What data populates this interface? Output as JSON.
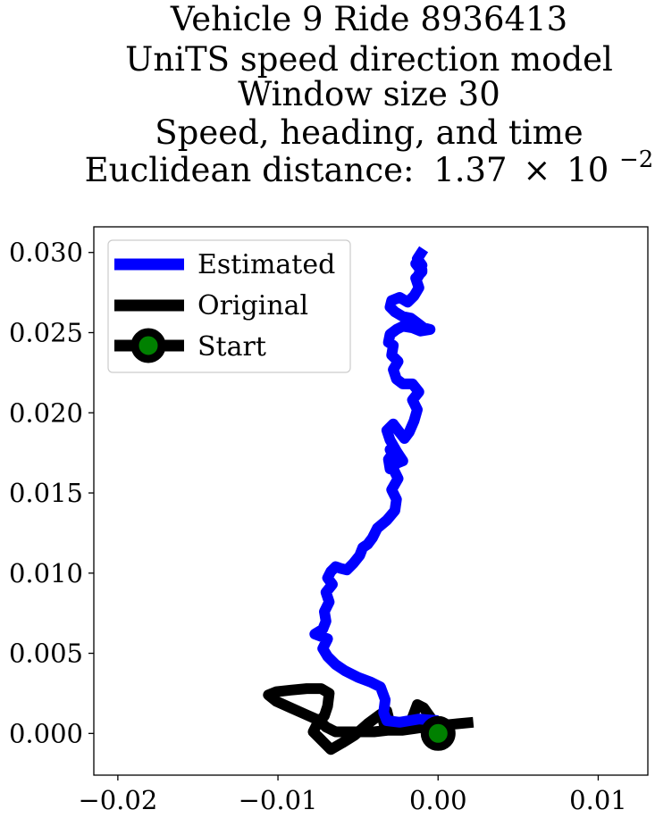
{
  "chart_data": {
    "type": "line",
    "title_lines": [
      "Vehicle 9 Ride 8936413",
      "UniTS speed direction model",
      "Window size 30",
      "Speed, heading, and time"
    ],
    "metric_label": "Euclidean distance:",
    "metric_mantissa": "1.37",
    "metric_times": "×",
    "metric_base": "10",
    "metric_exponent": "−2",
    "xlim": [
      -0.0215,
      0.0131
    ],
    "ylim": [
      -0.0026,
      0.0316
    ],
    "xticks": [
      -0.02,
      -0.01,
      0.0,
      0.01
    ],
    "xtick_labels": [
      "−0.02",
      "−0.01",
      "0.00",
      "0.01"
    ],
    "yticks": [
      0.0,
      0.005,
      0.01,
      0.015,
      0.02,
      0.025,
      0.03
    ],
    "ytick_labels": [
      "0.000",
      "0.005",
      "0.010",
      "0.015",
      "0.020",
      "0.025",
      "0.030"
    ],
    "grid": false,
    "legend": {
      "position": "upper left",
      "entries": [
        "Estimated",
        "Original",
        "Start"
      ]
    },
    "colors": {
      "estimated": "#0000ff",
      "original": "#000000",
      "start_edge": "#000000",
      "start_face": "#008000"
    },
    "series": [
      {
        "name": "Estimated",
        "x": [
          0.0,
          -0.0012,
          -0.0024,
          -0.0032,
          -0.0034,
          -0.0033,
          -0.0036,
          -0.0042,
          -0.005,
          -0.0058,
          -0.0064,
          -0.0069,
          -0.0072,
          -0.0069,
          -0.0077,
          -0.0072,
          -0.007,
          -0.0071,
          -0.0068,
          -0.007,
          -0.0066,
          -0.0069,
          -0.0067,
          -0.0064,
          -0.0061,
          -0.0057,
          -0.0053,
          -0.0049,
          -0.0047,
          -0.0044,
          -0.0041,
          -0.0038,
          -0.0032,
          -0.0027,
          -0.0026,
          -0.0029,
          -0.0025,
          -0.0028,
          -0.0026,
          -0.003,
          -0.0028,
          -0.0031,
          -0.003,
          -0.0027,
          -0.0022,
          -0.0026,
          -0.003,
          -0.0032,
          -0.0028,
          -0.0025,
          -0.0021,
          -0.0018,
          -0.0015,
          -0.0013,
          -0.0016,
          -0.0012,
          -0.0016,
          -0.0022,
          -0.0026,
          -0.0028,
          -0.0025,
          -0.0029,
          -0.0028,
          -0.0031,
          -0.003,
          -0.0026,
          -0.0022,
          -0.0016,
          -0.0011,
          -0.0005,
          -0.0009,
          -0.0013,
          -0.0017,
          -0.0022,
          -0.0027,
          -0.003,
          -0.0029,
          -0.0024,
          -0.0019,
          -0.0015,
          -0.0012,
          -0.0014,
          -0.001,
          -0.0014,
          -0.001,
          -0.0013,
          -0.001,
          -0.0013,
          -0.0011,
          -0.0009
        ],
        "y": [
          0.0008,
          0.0009,
          0.0007,
          0.0008,
          0.0013,
          0.0021,
          0.0029,
          0.0032,
          0.0035,
          0.0039,
          0.0043,
          0.0048,
          0.0053,
          0.0059,
          0.0062,
          0.0065,
          0.007,
          0.0076,
          0.0082,
          0.0088,
          0.0093,
          0.0097,
          0.0101,
          0.0104,
          0.0103,
          0.0102,
          0.0106,
          0.0111,
          0.0116,
          0.0118,
          0.0122,
          0.0128,
          0.0133,
          0.0139,
          0.0146,
          0.0152,
          0.0159,
          0.0165,
          0.017,
          0.0177,
          0.0175,
          0.0171,
          0.0165,
          0.0168,
          0.017,
          0.0176,
          0.0183,
          0.0189,
          0.0193,
          0.0189,
          0.0184,
          0.0188,
          0.0195,
          0.0202,
          0.0208,
          0.0213,
          0.0218,
          0.0218,
          0.0221,
          0.0227,
          0.0232,
          0.0236,
          0.0242,
          0.0244,
          0.0249,
          0.0252,
          0.0254,
          0.0253,
          0.0251,
          0.0252,
          0.0253,
          0.0256,
          0.0259,
          0.026,
          0.0263,
          0.0266,
          0.027,
          0.0272,
          0.0269,
          0.0273,
          0.0278,
          0.0284,
          0.0288,
          0.0293,
          0.0289,
          0.0284,
          0.0292,
          0.0296,
          0.0299,
          0.0302
        ]
      },
      {
        "name": "Original",
        "x": [
          0.0,
          -0.0008,
          -0.0015,
          -0.0016,
          -0.0013,
          -0.0009,
          -0.0004,
          -0.0008,
          -0.0015,
          -0.0022,
          -0.0028,
          -0.0033,
          -0.0034,
          -0.0031,
          -0.0032,
          -0.0036,
          -0.0044,
          -0.0052,
          -0.006,
          -0.0067,
          -0.0073,
          -0.0078,
          -0.0075,
          -0.0071,
          -0.0069,
          -0.0068,
          -0.0073,
          -0.0082,
          -0.0092,
          -0.0101,
          -0.0106,
          -0.0101,
          -0.0092,
          -0.0083,
          -0.0074,
          -0.007,
          -0.0068,
          -0.0066,
          -0.0064,
          -0.0062,
          -0.0058,
          -0.005,
          -0.004,
          -0.0031,
          -0.0022,
          -0.0015,
          -0.0008,
          0.0002,
          0.0012,
          0.0022
        ],
        "y": [
          0.0,
          0.0003,
          0.0006,
          0.001,
          0.0018,
          0.0016,
          0.0009,
          0.0005,
          0.0004,
          0.0003,
          0.0002,
          0.0003,
          0.0007,
          0.001,
          0.0014,
          0.0012,
          0.0006,
          -0.0001,
          -0.0006,
          -0.001,
          -0.0004,
          0.0001,
          0.0007,
          0.0011,
          0.0017,
          0.0025,
          0.0028,
          0.0028,
          0.0027,
          0.0026,
          0.0024,
          0.002,
          0.0016,
          0.0012,
          0.0008,
          0.0004,
          0.0003,
          0.0002,
          0.0001,
          0.0001,
          0.0001,
          0.0001,
          0.0001,
          0.0002,
          0.0002,
          0.0003,
          0.0004,
          0.0005,
          0.0006,
          0.0007
        ]
      }
    ],
    "start_point": {
      "name": "Start",
      "x": 0.0,
      "y": 0.0
    }
  }
}
